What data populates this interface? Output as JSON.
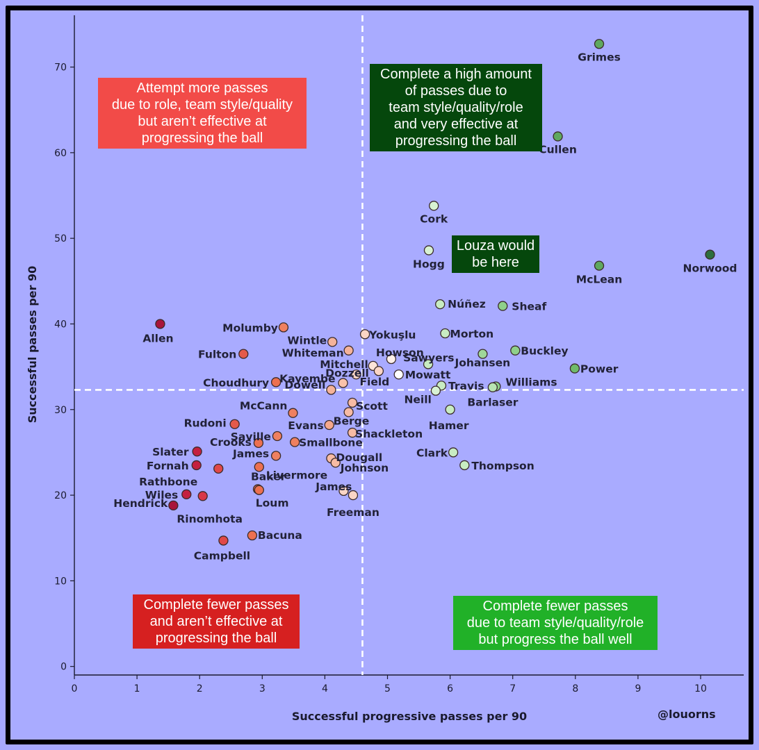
{
  "chart_data": {
    "type": "scatter",
    "title": "",
    "xlabel": "Successful progressive passes per 90",
    "ylabel": "Successful passes per 90",
    "xlim": [
      0,
      10.8
    ],
    "ylim": [
      -1,
      77
    ],
    "xticks": [
      0,
      1,
      2,
      3,
      4,
      5,
      6,
      7,
      8,
      9,
      10
    ],
    "yticks": [
      0,
      10,
      20,
      30,
      40,
      50,
      60,
      70
    ],
    "reference_lines": {
      "x": 4.6,
      "y": 32.3
    },
    "points": [
      {
        "name": "Grimes",
        "x": 8.38,
        "y": 72.7,
        "color": "#5fa85f"
      },
      {
        "name": "Cullen",
        "x": 7.72,
        "y": 61.9,
        "color": "#5fa85f"
      },
      {
        "name": "Cork",
        "x": 5.74,
        "y": 53.8,
        "color": "#d8f2d3"
      },
      {
        "name": "Hogg",
        "x": 5.66,
        "y": 48.6,
        "color": "#d8f2d3"
      },
      {
        "name": "McLean",
        "x": 8.38,
        "y": 46.8,
        "color": "#5fa85f"
      },
      {
        "name": "Norwood",
        "x": 10.15,
        "y": 48.1,
        "color": "#2e6e3e"
      },
      {
        "name": "Núñez",
        "x": 5.84,
        "y": 42.3,
        "color": "#c8ecc2"
      },
      {
        "name": "Sheaf",
        "x": 6.84,
        "y": 42.1,
        "color": "#8fd08a"
      },
      {
        "name": "Morton",
        "x": 5.92,
        "y": 38.9,
        "color": "#c8ecc2"
      },
      {
        "name": "Buckley",
        "x": 7.04,
        "y": 36.9,
        "color": "#8fd08a"
      },
      {
        "name": "Power",
        "x": 7.99,
        "y": 34.8,
        "color": "#6fbb6a"
      },
      {
        "name": "Johansen",
        "x": 6.52,
        "y": 36.5,
        "color": "#9fd79a"
      },
      {
        "name": "Williams",
        "x": 6.73,
        "y": 32.7,
        "color": "#8fd08a"
      },
      {
        "name": "Sawyers",
        "x": 5.65,
        "y": 35.3,
        "color": "#c8ecc2"
      },
      {
        "name": "Travis",
        "x": 5.86,
        "y": 32.8,
        "color": "#c8ecc2"
      },
      {
        "name": "Neill",
        "x": 5.77,
        "y": 32.2,
        "color": "#d8f2d3"
      },
      {
        "name": "Barlaser",
        "x": 6.68,
        "y": 32.6,
        "color": "#b8e4b2"
      },
      {
        "name": "Hamer",
        "x": 6.0,
        "y": 30.0,
        "color": "#c8ecc2"
      },
      {
        "name": "Clark",
        "x": 6.05,
        "y": 25.0,
        "color": "#c8ecc2"
      },
      {
        "name": "Thompson",
        "x": 6.23,
        "y": 23.5,
        "color": "#c8ecc2"
      },
      {
        "name": "Allen",
        "x": 1.37,
        "y": 40.0,
        "color": "#a8153a"
      },
      {
        "name": "Molumby",
        "x": 3.34,
        "y": 39.6,
        "color": "#ef8060"
      },
      {
        "name": "Fulton",
        "x": 2.7,
        "y": 36.5,
        "color": "#e45a4a"
      },
      {
        "name": "Wintle",
        "x": 4.12,
        "y": 37.9,
        "color": "#f5b39a"
      },
      {
        "name": "Whiteman",
        "x": 4.38,
        "y": 36.9,
        "color": "#f5b39a"
      },
      {
        "name": "Yokuşlu",
        "x": 4.64,
        "y": 38.8,
        "color": "#fbd5c5"
      },
      {
        "name": "Howson",
        "x": 5.06,
        "y": 35.9,
        "color": "#fdf0ea"
      },
      {
        "name": "Mitchell",
        "x": 4.77,
        "y": 35.1,
        "color": "#fde4d8"
      },
      {
        "name": "Dozzell",
        "x": 4.86,
        "y": 34.5,
        "color": "#fbd5c5"
      },
      {
        "name": "Mowatt",
        "x": 5.18,
        "y": 34.1,
        "color": "#ffffff"
      },
      {
        "name": "Field",
        "x": 4.5,
        "y": 34.1,
        "color": "#fbd5c5"
      },
      {
        "name": "Kayembe",
        "x": 4.29,
        "y": 33.1,
        "color": "#f9c2aa"
      },
      {
        "name": "Choudhury",
        "x": 3.22,
        "y": 33.2,
        "color": "#ec7050"
      },
      {
        "name": "Dowell",
        "x": 4.1,
        "y": 32.3,
        "color": "#f5b39a"
      },
      {
        "name": "Scott",
        "x": 4.44,
        "y": 30.8,
        "color": "#f7bba4"
      },
      {
        "name": "McCann",
        "x": 3.49,
        "y": 29.6,
        "color": "#ef8060"
      },
      {
        "name": "Berge",
        "x": 4.38,
        "y": 29.7,
        "color": "#f7bba4"
      },
      {
        "name": "Evans",
        "x": 4.07,
        "y": 28.2,
        "color": "#f5a88c"
      },
      {
        "name": "Rudoni",
        "x": 2.56,
        "y": 28.3,
        "color": "#e45a4a"
      },
      {
        "name": "Saville",
        "x": 3.24,
        "y": 26.9,
        "color": "#ef8060"
      },
      {
        "name": "Shackleton",
        "x": 4.44,
        "y": 27.3,
        "color": "#f7bba4"
      },
      {
        "name": "Crooks",
        "x": 2.94,
        "y": 26.1,
        "color": "#ec7050"
      },
      {
        "name": "Smallbone",
        "x": 3.52,
        "y": 26.2,
        "color": "#ef8060"
      },
      {
        "name": "James",
        "x": 3.22,
        "y": 24.6,
        "color": "#ef8060"
      },
      {
        "name": "Dougall",
        "x": 4.1,
        "y": 24.3,
        "color": "#f7bba4"
      },
      {
        "name": "Johnson",
        "x": 4.17,
        "y": 23.8,
        "color": "#f7bba4"
      },
      {
        "name": "Livermore",
        "x": 2.95,
        "y": 23.3,
        "color": "#ec7050"
      },
      {
        "name": "Slater",
        "x": 1.96,
        "y": 25.1,
        "color": "#c42040"
      },
      {
        "name": "Fornah",
        "x": 1.95,
        "y": 23.5,
        "color": "#c42040"
      },
      {
        "name": "Rathbone",
        "x": 2.3,
        "y": 23.1,
        "color": "#e04848"
      },
      {
        "name": "Baker",
        "x": 2.93,
        "y": 20.7,
        "color": "#ec7050"
      },
      {
        "name": "Wiles",
        "x": 1.79,
        "y": 20.1,
        "color": "#c42040"
      },
      {
        "name": "Rinomhota",
        "x": 2.05,
        "y": 19.9,
        "color": "#d83848"
      },
      {
        "name": "Hendrick",
        "x": 1.58,
        "y": 18.8,
        "color": "#a8153a"
      },
      {
        "name": "Loum",
        "x": 2.95,
        "y": 20.6,
        "color": "#ec7050"
      },
      {
        "name": "James",
        "x": 4.3,
        "y": 20.5,
        "color": "#fbd5c5"
      },
      {
        "name": "Freeman",
        "x": 4.45,
        "y": 20.0,
        "color": "#fbd5c5"
      },
      {
        "name": "Bacuna",
        "x": 2.84,
        "y": 15.3,
        "color": "#ec7050"
      },
      {
        "name": "Campbell",
        "x": 2.38,
        "y": 14.7,
        "color": "#e04848"
      }
    ],
    "quadrant_notes": {
      "top_left": "Attempt more passes\ndue to role, team style/quality\nbut aren’t effective at\nprogressing the ball",
      "top_right": "Complete a high amount\nof passes due to\nteam style/quality/role\nand very effective at\nprogressing the ball",
      "bottom_left": "Complete fewer passes\nand aren’t effective at\nprogressing the ball",
      "bottom_right": "Complete fewer passes\ndue to team style/quality/role\nbut progress the ball well"
    },
    "annotation": "Louza would\nbe here"
  },
  "credit": "@louorns"
}
